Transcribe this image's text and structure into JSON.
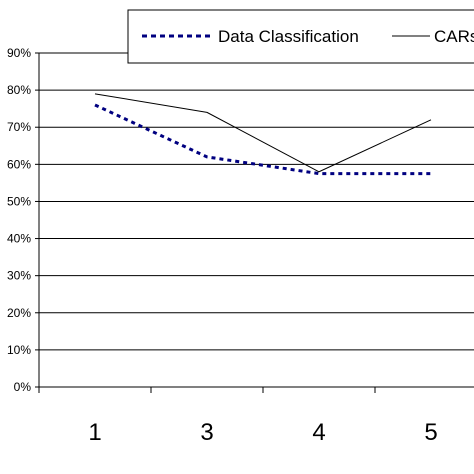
{
  "chart_data": {
    "type": "line",
    "categories": [
      "1",
      "3",
      "4",
      "5"
    ],
    "series": [
      {
        "name": "Data Classification",
        "values": [
          0.76,
          0.62,
          0.575,
          0.575
        ],
        "color": "#000080",
        "style": "dotted"
      },
      {
        "name": "CARs",
        "values": [
          0.79,
          0.74,
          0.58,
          0.72
        ],
        "color": "#000000",
        "style": "solid"
      }
    ],
    "legend_labels": [
      "Data Classification",
      "CARs"
    ],
    "ylim": [
      0,
      0.9
    ],
    "yticks": [
      0,
      0.1,
      0.2,
      0.3,
      0.4,
      0.5,
      0.6,
      0.7,
      0.8,
      0.9
    ],
    "ytick_labels": [
      "0%",
      "10%",
      "20%",
      "30%",
      "40%",
      "50%",
      "60%",
      "70%",
      "80%",
      "90%"
    ],
    "grid": true,
    "legend_position": "top"
  }
}
